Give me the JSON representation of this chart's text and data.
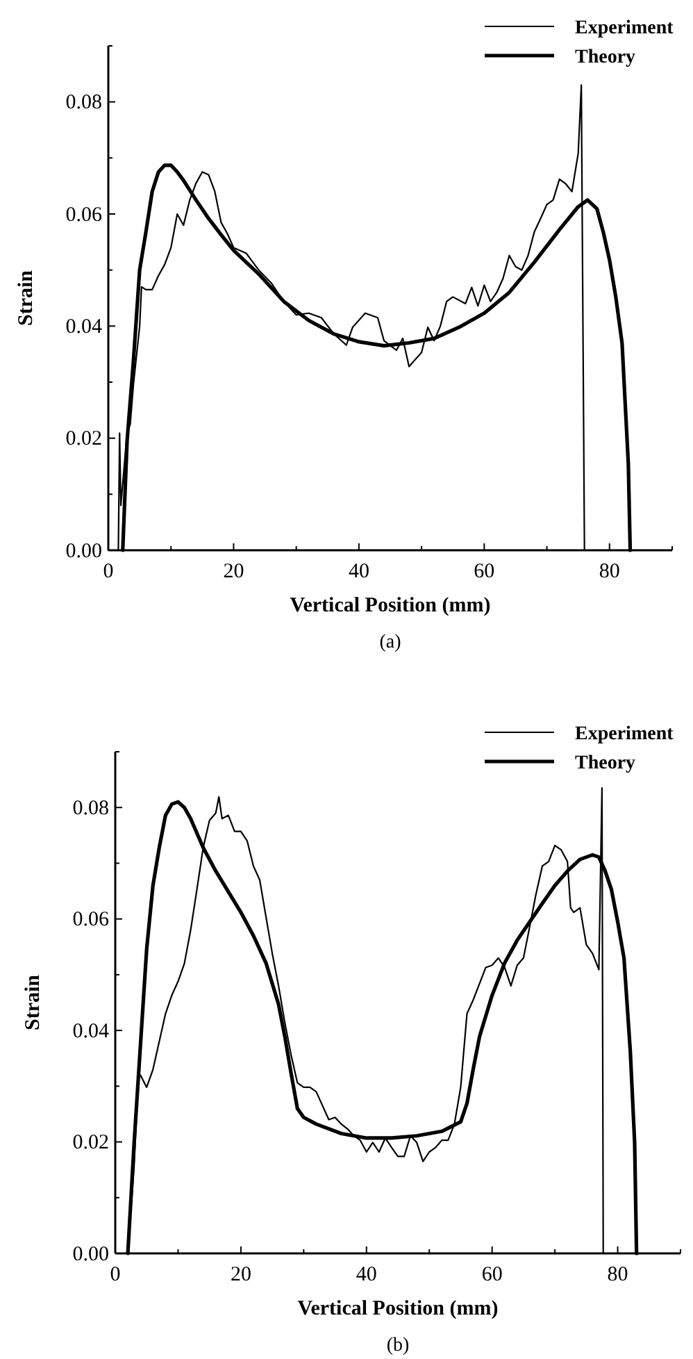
{
  "chart_data": [
    {
      "type": "line",
      "xlabel": "Vertical Position (mm)",
      "ylabel": "Strain",
      "annotations": [
        "(a)"
      ],
      "legend": "top right",
      "marker": "none",
      "line_style": "solid",
      "xlim": [
        0,
        90
      ],
      "ylim": [
        0,
        0.09
      ],
      "xticks": [
        0,
        {
          "value": 10,
          "label": null
        },
        20,
        {
          "value": 30,
          "label": null
        },
        40,
        {
          "value": 50,
          "label": null
        },
        60,
        {
          "value": 70,
          "label": null
        },
        80,
        {
          "value": 90,
          "label": null
        }
      ],
      "yticks": [
        {
          "value": 0,
          "label": "0.00"
        },
        {
          "value": 0.01,
          "label": null
        },
        {
          "value": 0.02,
          "label": "0.02"
        },
        {
          "value": 0.03,
          "label": null
        },
        {
          "value": 0.04,
          "label": "0.04"
        },
        {
          "value": 0.05,
          "label": null
        },
        {
          "value": 0.06,
          "label": "0.06"
        },
        {
          "value": 0.07,
          "label": null
        },
        {
          "value": 0.08,
          "label": "0.08"
        },
        {
          "value": 0.09,
          "label": null
        }
      ],
      "series": [
        {
          "name": "Experiment",
          "color": "#000000",
          "x": [
            0,
            1.6,
            1.8,
            2,
            3,
            3.5,
            4,
            5,
            5.3,
            6,
            7,
            8,
            9,
            10,
            11,
            12,
            13,
            14,
            15,
            16,
            17,
            18,
            19,
            20,
            22,
            24,
            26,
            28,
            30,
            32,
            34,
            36,
            38,
            39,
            41,
            43,
            44,
            46,
            47,
            48,
            50,
            51,
            52,
            53,
            54,
            55,
            57,
            58,
            59,
            60,
            61,
            62,
            63,
            64,
            65,
            66,
            67,
            68,
            69,
            70,
            71,
            72,
            73,
            74,
            75,
            75.5,
            76
          ],
          "values": [
            0,
            0,
            0.0209,
            0.008,
            0.021,
            0.0225,
            0.0295,
            0.04,
            0.047,
            0.0465,
            0.0465,
            0.049,
            0.051,
            0.054,
            0.06,
            0.058,
            0.0625,
            0.0655,
            0.0675,
            0.067,
            0.064,
            0.0585,
            0.0565,
            0.054,
            0.053,
            0.05,
            0.0477,
            0.0444,
            0.042,
            0.0423,
            0.0415,
            0.0386,
            0.0366,
            0.0398,
            0.0423,
            0.0415,
            0.0374,
            0.0357,
            0.0378,
            0.0328,
            0.0353,
            0.0398,
            0.0374,
            0.04,
            0.0444,
            0.0452,
            0.044,
            0.0469,
            0.0436,
            0.0473,
            0.0444,
            0.046,
            0.0485,
            0.0526,
            0.0506,
            0.05,
            0.0526,
            0.0568,
            0.0592,
            0.0617,
            0.0625,
            0.0662,
            0.0654,
            0.064,
            0.0708,
            0.083,
            0
          ]
        },
        {
          "name": "Theory",
          "color": "#000000",
          "x": [
            2.3,
            3,
            4,
            5,
            6,
            7,
            8,
            9,
            10,
            11,
            12,
            14,
            16,
            18,
            20,
            24,
            28,
            32,
            36,
            40,
            44,
            48,
            52,
            56,
            60,
            64,
            68,
            72,
            75,
            76.5,
            78,
            79,
            80,
            81,
            82,
            83,
            83.3
          ],
          "values": [
            0,
            0.0196,
            0.0337,
            0.05,
            0.0568,
            0.064,
            0.0675,
            0.0687,
            0.0687,
            0.0675,
            0.066,
            0.0625,
            0.0592,
            0.0563,
            0.0535,
            0.0493,
            0.0444,
            0.041,
            0.0386,
            0.0372,
            0.0365,
            0.037,
            0.0378,
            0.0398,
            0.0423,
            0.046,
            0.0514,
            0.0572,
            0.0613,
            0.0625,
            0.0609,
            0.0568,
            0.0518,
            0.0452,
            0.037,
            0.0155,
            0
          ]
        }
      ]
    },
    {
      "type": "line",
      "xlabel": "Vertical Position (mm)",
      "ylabel": "Strain",
      "annotations": [
        "(b)"
      ],
      "legend": "top right",
      "marker": "none",
      "line_style": "solid",
      "xlim": [
        0,
        90
      ],
      "ylim": [
        0,
        0.09
      ],
      "xticks": [
        0,
        {
          "value": 10,
          "label": null
        },
        20,
        {
          "value": 30,
          "label": null
        },
        40,
        {
          "value": 50,
          "label": null
        },
        60,
        {
          "value": 70,
          "label": null
        },
        80,
        {
          "value": 90,
          "label": null
        }
      ],
      "yticks": [
        {
          "value": 0,
          "label": "0.00"
        },
        {
          "value": 0.01,
          "label": null
        },
        {
          "value": 0.02,
          "label": "0.02"
        },
        {
          "value": 0.03,
          "label": null
        },
        {
          "value": 0.04,
          "label": "0.04"
        },
        {
          "value": 0.05,
          "label": null
        },
        {
          "value": 0.06,
          "label": "0.06"
        },
        {
          "value": 0.07,
          "label": null
        },
        {
          "value": 0.08,
          "label": "0.08"
        },
        {
          "value": 0.09,
          "label": null
        }
      ],
      "series": [
        {
          "name": "Experiment",
          "color": "#000000",
          "x": [
            2,
            3,
            3.7,
            4,
            5,
            6,
            7,
            8,
            9,
            10,
            11,
            12,
            13,
            14,
            15,
            16,
            16.5,
            17,
            18,
            19,
            20,
            21,
            22,
            23,
            24,
            25,
            26,
            27,
            28,
            29,
            30,
            31,
            32,
            33,
            34,
            35,
            36,
            37,
            38,
            39,
            40,
            41,
            42,
            43,
            44,
            45,
            46,
            47,
            48,
            49,
            50,
            51,
            52,
            53,
            54,
            55,
            56,
            57,
            58,
            59,
            60,
            61,
            62,
            63,
            64,
            65,
            66,
            67,
            68,
            69,
            70,
            71,
            72,
            72.5,
            73,
            74,
            75,
            76,
            77,
            77.5,
            77.7
          ],
          "values": [
            0,
            0.0157,
            0.032,
            0.032,
            0.0298,
            0.033,
            0.038,
            0.043,
            0.0463,
            0.0488,
            0.052,
            0.058,
            0.0653,
            0.0728,
            0.0777,
            0.079,
            0.0819,
            0.078,
            0.0786,
            0.0757,
            0.0757,
            0.074,
            0.0695,
            0.067,
            0.0604,
            0.0538,
            0.048,
            0.0414,
            0.0356,
            0.0306,
            0.0298,
            0.0298,
            0.029,
            0.0265,
            0.024,
            0.0244,
            0.0232,
            0.0223,
            0.0211,
            0.0203,
            0.0182,
            0.0199,
            0.0182,
            0.0207,
            0.019,
            0.0174,
            0.0174,
            0.0211,
            0.0199,
            0.0165,
            0.0182,
            0.019,
            0.0203,
            0.0203,
            0.0232,
            0.0298,
            0.043,
            0.0455,
            0.0484,
            0.0513,
            0.0517,
            0.053,
            0.0513,
            0.048,
            0.0517,
            0.053,
            0.0587,
            0.0645,
            0.0695,
            0.0703,
            0.0732,
            0.0724,
            0.0703,
            0.062,
            0.0612,
            0.062,
            0.0554,
            0.0538,
            0.0509,
            0.0835,
            0
          ]
        },
        {
          "name": "Theory",
          "color": "#000000",
          "x": [
            2,
            3,
            4,
            5,
            6,
            7,
            8,
            9,
            10,
            11,
            12,
            14,
            16,
            18,
            20,
            22,
            24,
            26,
            27,
            28,
            29,
            30,
            32,
            36,
            40,
            44,
            48,
            52,
            55,
            56,
            57,
            58,
            60,
            62,
            64,
            66,
            68,
            70,
            72,
            74,
            76,
            77,
            78,
            79,
            80,
            81,
            82,
            82.7,
            83
          ],
          "values": [
            0,
            0.0198,
            0.0372,
            0.0546,
            0.066,
            0.0728,
            0.0786,
            0.0806,
            0.081,
            0.08,
            0.078,
            0.0728,
            0.0686,
            0.0649,
            0.0612,
            0.057,
            0.0521,
            0.0447,
            0.0389,
            0.0323,
            0.026,
            0.0244,
            0.0232,
            0.0215,
            0.0207,
            0.0207,
            0.0211,
            0.0219,
            0.0236,
            0.0269,
            0.0331,
            0.0389,
            0.0463,
            0.0521,
            0.0562,
            0.0595,
            0.0628,
            0.066,
            0.0686,
            0.0707,
            0.0715,
            0.0711,
            0.0686,
            0.0653,
            0.0595,
            0.053,
            0.0364,
            0.0198,
            0
          ]
        }
      ]
    }
  ]
}
